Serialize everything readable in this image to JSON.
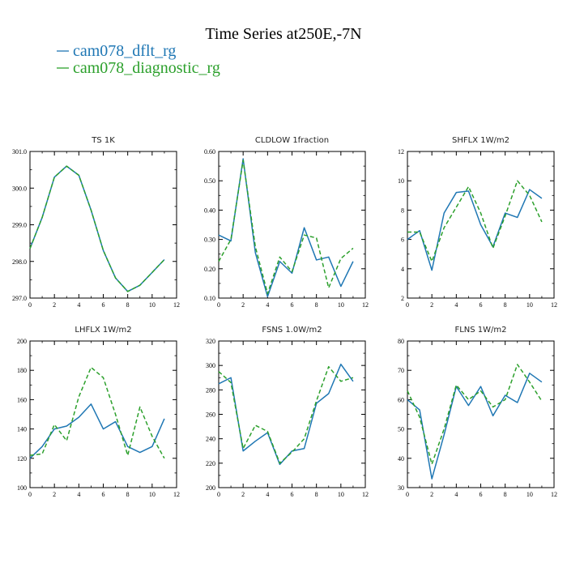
{
  "figure_title": "Time Series at250E,-7N",
  "legend": [
    {
      "label": "cam078_dflt_rg",
      "color": "#1f77b4",
      "dash": false
    },
    {
      "label": "cam078_diagnostic_rg",
      "color": "#2ca02c",
      "dash": true
    }
  ],
  "chart_data": [
    {
      "type": "line",
      "title": "TS   1K",
      "xlim": [
        0,
        12
      ],
      "ylim": [
        297,
        301
      ],
      "xticks": [
        0,
        2,
        4,
        6,
        8,
        10,
        12
      ],
      "yticks": [
        297,
        298,
        299,
        300,
        301
      ],
      "ytick_labels": [
        "297.0",
        "298.0",
        "299.0",
        "300.0",
        "301.0"
      ],
      "x": [
        0,
        1,
        2,
        3,
        4,
        5,
        6,
        7,
        8,
        9,
        10,
        11
      ],
      "series": [
        {
          "name": "cam078_dflt_rg",
          "values": [
            298.35,
            299.2,
            300.3,
            300.6,
            300.35,
            299.4,
            298.3,
            297.55,
            297.18,
            297.35,
            297.7,
            298.05
          ]
        },
        {
          "name": "cam078_diagnostic_rg",
          "values": [
            298.35,
            299.2,
            300.3,
            300.6,
            300.35,
            299.4,
            298.3,
            297.55,
            297.18,
            297.35,
            297.7,
            298.05
          ]
        }
      ]
    },
    {
      "type": "line",
      "title": "CLDLOW   1fraction",
      "xlim": [
        0,
        12
      ],
      "ylim": [
        0.1,
        0.6
      ],
      "xticks": [
        0,
        2,
        4,
        6,
        8,
        10,
        12
      ],
      "yticks": [
        0.1,
        0.2,
        0.3,
        0.4,
        0.5,
        0.6
      ],
      "ytick_labels": [
        "0.10",
        "0.20",
        "0.30",
        "0.40",
        "0.50",
        "0.60"
      ],
      "x": [
        0,
        1,
        2,
        3,
        4,
        5,
        6,
        7,
        8,
        9,
        10,
        11
      ],
      "series": [
        {
          "name": "cam078_dflt_rg",
          "values": [
            0.315,
            0.295,
            0.575,
            0.255,
            0.105,
            0.225,
            0.185,
            0.34,
            0.23,
            0.24,
            0.14,
            0.225
          ]
        },
        {
          "name": "cam078_diagnostic_rg",
          "values": [
            0.225,
            0.3,
            0.57,
            0.275,
            0.115,
            0.24,
            0.19,
            0.315,
            0.305,
            0.135,
            0.235,
            0.27
          ]
        }
      ]
    },
    {
      "type": "line",
      "title": "SHFLX   1W/m2",
      "xlim": [
        0,
        12
      ],
      "ylim": [
        2,
        12
      ],
      "xticks": [
        0,
        2,
        4,
        6,
        8,
        10,
        12
      ],
      "yticks": [
        2,
        4,
        6,
        8,
        10,
        12
      ],
      "ytick_labels": [
        "2",
        "4",
        "6",
        "8",
        "10",
        "12"
      ],
      "x": [
        0,
        1,
        2,
        3,
        4,
        5,
        6,
        7,
        8,
        9,
        10,
        11
      ],
      "series": [
        {
          "name": "cam078_dflt_rg",
          "values": [
            6.0,
            6.6,
            3.9,
            7.8,
            9.2,
            9.3,
            7.0,
            5.5,
            7.8,
            7.5,
            9.4,
            8.8
          ]
        },
        {
          "name": "cam078_diagnostic_rg",
          "values": [
            6.5,
            6.5,
            4.5,
            6.8,
            8.2,
            9.6,
            7.8,
            5.4,
            7.6,
            10.0,
            9.0,
            7.2
          ]
        }
      ]
    },
    {
      "type": "line",
      "title": "LHFLX   1W/m2",
      "xlim": [
        0,
        12
      ],
      "ylim": [
        100,
        200
      ],
      "xticks": [
        0,
        2,
        4,
        6,
        8,
        10,
        12
      ],
      "yticks": [
        100,
        120,
        140,
        160,
        180,
        200
      ],
      "ytick_labels": [
        "100",
        "120",
        "140",
        "160",
        "180",
        "200"
      ],
      "x": [
        0,
        1,
        2,
        3,
        4,
        5,
        6,
        7,
        8,
        9,
        10,
        11
      ],
      "series": [
        {
          "name": "cam078_dflt_rg",
          "values": [
            120,
            128,
            140,
            142,
            148,
            157,
            140,
            145,
            128,
            124,
            128,
            147
          ]
        },
        {
          "name": "cam078_diagnostic_rg",
          "values": [
            122,
            123,
            143,
            132,
            162,
            182,
            175,
            150,
            122,
            155,
            135,
            120
          ]
        }
      ]
    },
    {
      "type": "line",
      "title": "FSNS   1.0W/m2",
      "xlim": [
        0,
        12
      ],
      "ylim": [
        200,
        320
      ],
      "xticks": [
        0,
        2,
        4,
        6,
        8,
        10,
        12
      ],
      "yticks": [
        200,
        220,
        240,
        260,
        280,
        300,
        320
      ],
      "ytick_labels": [
        "200",
        "220",
        "240",
        "260",
        "280",
        "300",
        "320"
      ],
      "x": [
        0,
        1,
        2,
        3,
        4,
        5,
        6,
        7,
        8,
        9,
        10,
        11
      ],
      "series": [
        {
          "name": "cam078_dflt_rg",
          "values": [
            285,
            290,
            230,
            238,
            245,
            219,
            230,
            232,
            269,
            277,
            301,
            287
          ]
        },
        {
          "name": "cam078_diagnostic_rg",
          "values": [
            295,
            286,
            232,
            251,
            246,
            220,
            229,
            240,
            271,
            299,
            287,
            290
          ]
        }
      ]
    },
    {
      "type": "line",
      "title": "FLNS   1W/m2",
      "xlim": [
        0,
        12
      ],
      "ylim": [
        30,
        80
      ],
      "xticks": [
        0,
        2,
        4,
        6,
        8,
        10,
        12
      ],
      "yticks": [
        30,
        40,
        50,
        60,
        70,
        80
      ],
      "ytick_labels": [
        "30",
        "40",
        "50",
        "60",
        "70",
        "80"
      ],
      "x": [
        0,
        1,
        2,
        3,
        4,
        5,
        6,
        7,
        8,
        9,
        10,
        11
      ],
      "series": [
        {
          "name": "cam078_dflt_rg",
          "values": [
            60,
            56.5,
            33,
            48,
            64.5,
            58,
            64.5,
            54.5,
            61.5,
            59,
            69,
            66
          ]
        },
        {
          "name": "cam078_diagnostic_rg",
          "values": [
            63,
            54,
            38,
            50,
            65,
            60,
            63,
            57.5,
            60,
            72,
            66,
            59.5
          ]
        }
      ]
    }
  ]
}
